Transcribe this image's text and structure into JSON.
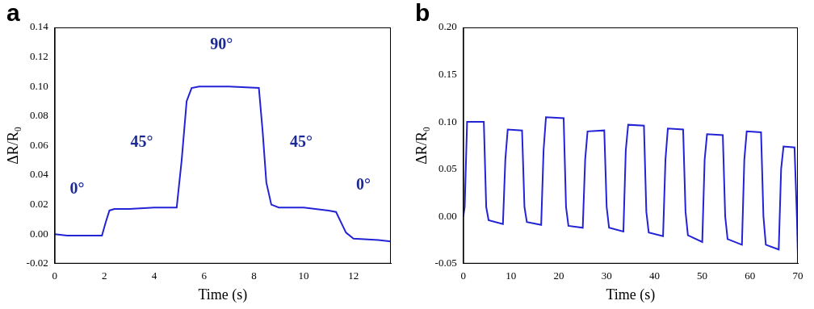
{
  "chart_data": [
    {
      "type": "line",
      "panel": "a",
      "x_label": "Time (s)",
      "y_label": "ΔR/R₀",
      "color": "#2323d6",
      "grid": false,
      "xlim": [
        0,
        13.5
      ],
      "xticks": [
        0,
        2,
        4,
        6,
        8,
        10,
        12
      ],
      "ylim": [
        -0.02,
        0.14
      ],
      "yticks": [
        {
          "value": -0.02,
          "label": "-0.02"
        },
        {
          "value": 0,
          "label": "0.00"
        },
        {
          "value": 0.02,
          "label": "0.02"
        },
        {
          "value": 0.04,
          "label": "0.04"
        },
        {
          "value": 0.06,
          "label": "0.06"
        },
        {
          "value": 0.08,
          "label": "0.08"
        },
        {
          "value": 0.1,
          "label": "0.10"
        },
        {
          "value": 0.12,
          "label": "0.12"
        },
        {
          "value": 0.14,
          "label": "0.14"
        }
      ],
      "x": [
        0,
        0.5,
        1,
        1.5,
        1.9,
        2.05,
        2.2,
        2.4,
        3,
        4,
        4.9,
        5.1,
        5.3,
        5.5,
        5.8,
        7,
        8.2,
        8.35,
        8.5,
        8.7,
        9,
        10,
        11,
        11.3,
        11.5,
        11.7,
        12,
        13,
        13.5
      ],
      "values": [
        0,
        -0.001,
        -0.001,
        -0.001,
        -0.001,
        0.008,
        0.016,
        0.017,
        0.017,
        0.018,
        0.018,
        0.05,
        0.09,
        0.099,
        0.1,
        0.1,
        0.099,
        0.07,
        0.035,
        0.02,
        0.018,
        0.018,
        0.016,
        0.015,
        0.008,
        0.001,
        -0.003,
        -0.004,
        -0.005
      ],
      "annotations": [
        {
          "text": "0°",
          "x": 0.9,
          "y": 0.03
        },
        {
          "text": "45°",
          "x": 3.5,
          "y": 0.062
        },
        {
          "text": "90°",
          "x": 6.7,
          "y": 0.128
        },
        {
          "text": "45°",
          "x": 9.9,
          "y": 0.062
        },
        {
          "text": "0°",
          "x": 12.4,
          "y": 0.033
        }
      ]
    },
    {
      "type": "line",
      "panel": "b",
      "x_label": "Time (s)",
      "y_label": "ΔR/R₀",
      "color": "#2323d6",
      "grid": false,
      "xlim": [
        0,
        70
      ],
      "xticks": [
        0,
        10,
        20,
        30,
        40,
        50,
        60,
        70
      ],
      "ylim": [
        -0.05,
        0.2
      ],
      "yticks": [
        {
          "value": -0.05,
          "label": "-0.05"
        },
        {
          "value": 0,
          "label": "0.00"
        },
        {
          "value": 0.05,
          "label": "0.05"
        },
        {
          "value": 0.1,
          "label": "0.10"
        },
        {
          "value": 0.15,
          "label": "0.15"
        },
        {
          "value": 0.2,
          "label": "0.20"
        }
      ],
      "x": [
        0,
        0.3,
        0.8,
        4.3,
        4.8,
        5.3,
        8.3,
        8.8,
        9.3,
        12.3,
        12.8,
        13.3,
        16.3,
        16.8,
        17.3,
        21,
        21.5,
        22,
        25,
        25.5,
        26,
        29.5,
        30,
        30.5,
        33.5,
        34,
        34.5,
        37.8,
        38.3,
        38.8,
        41.8,
        42.3,
        42.8,
        46,
        46.5,
        47,
        50,
        50.5,
        51,
        54.3,
        54.8,
        55.3,
        58.3,
        58.8,
        59.3,
        62.3,
        62.8,
        63.3,
        66,
        66.5,
        67,
        69.3,
        69.8,
        70
      ],
      "values": [
        0,
        0.01,
        0.1,
        0.1,
        0.01,
        -0.004,
        -0.008,
        0.06,
        0.092,
        0.091,
        0.01,
        -0.006,
        -0.009,
        0.07,
        0.105,
        0.104,
        0.01,
        -0.01,
        -0.012,
        0.06,
        0.09,
        0.091,
        0.01,
        -0.012,
        -0.016,
        0.07,
        0.097,
        0.096,
        0.005,
        -0.017,
        -0.021,
        0.06,
        0.093,
        0.092,
        0.005,
        -0.02,
        -0.027,
        0.06,
        0.087,
        0.086,
        0,
        -0.024,
        -0.03,
        0.06,
        0.09,
        0.089,
        0,
        -0.03,
        -0.035,
        0.05,
        0.074,
        0.073,
        0,
        -0.04
      ]
    }
  ]
}
